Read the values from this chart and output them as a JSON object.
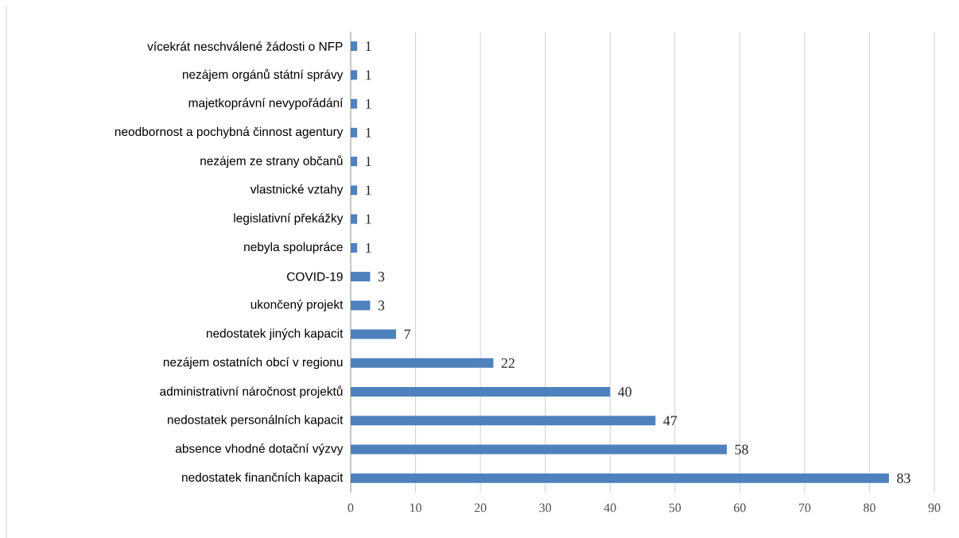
{
  "chart_data": {
    "type": "bar",
    "orientation": "horizontal",
    "categories": [
      "vícekrát neschválené žádosti o NFP",
      "nezájem orgánů státní správy",
      "majetkoprávní nevypořádání",
      "neodbornost a pochybná činnost agentury",
      "nezájem ze strany občanů",
      "vlastnické vztahy",
      "legislativní překážky",
      "nebyla spolupráce",
      "COVID-19",
      "ukončený projekt",
      "nedostatek jiných kapacit",
      "nezájem ostatních obcí v regionu",
      "administrativní náročnost projektů",
      "nedostatek personálních kapacit",
      "absence vhodné dotační výzvy",
      "nedostatek finančních kapacit"
    ],
    "values": [
      1,
      1,
      1,
      1,
      1,
      1,
      1,
      1,
      3,
      3,
      7,
      22,
      40,
      47,
      58,
      83
    ],
    "color": "#4f81bd",
    "xlim": [
      0,
      90
    ],
    "xticks": [
      0,
      10,
      20,
      30,
      40,
      50,
      60,
      70,
      80,
      90
    ],
    "grid": "x",
    "data_labels": true
  }
}
